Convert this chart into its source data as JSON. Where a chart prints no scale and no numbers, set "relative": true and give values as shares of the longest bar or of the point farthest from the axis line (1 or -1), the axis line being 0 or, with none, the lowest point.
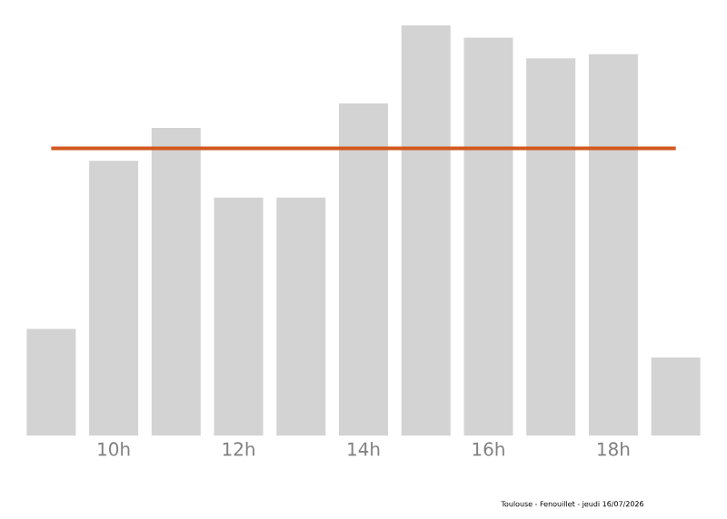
{
  "chart_data": {
    "type": "bar",
    "relative": true,
    "categories": [
      null,
      "10h",
      null,
      "12h",
      null,
      "14h",
      null,
      "16h",
      null,
      "18h",
      null
    ],
    "values": [
      0.26,
      0.67,
      0.75,
      0.58,
      0.58,
      0.81,
      1,
      0.97,
      0.92,
      0.93,
      0.19
    ],
    "color": "#d3d3d3",
    "ref_lines": [
      {
        "axis": "y",
        "value": 0.7,
        "color": "#d2581e"
      }
    ],
    "annotations": [
      "Toulouse - Fenouillet - jeudi 16/07/2026"
    ]
  }
}
